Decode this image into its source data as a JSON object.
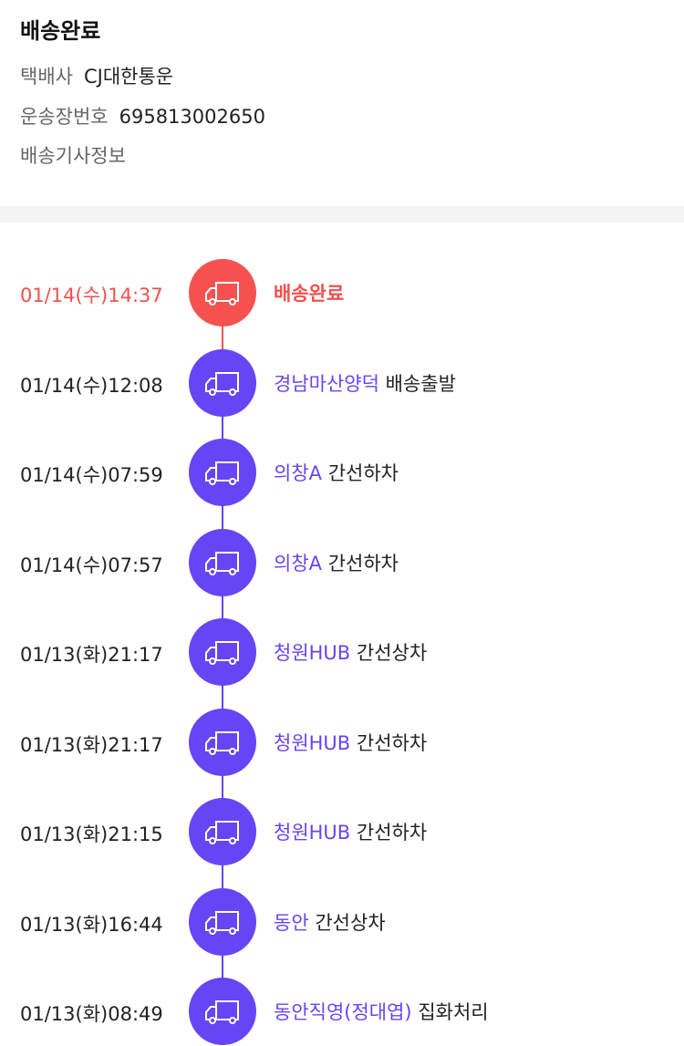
{
  "header": {
    "status": "배송완료",
    "courier_label": "택배사",
    "courier_value": "CJ대한통운",
    "tracking_label": "운송장번호",
    "tracking_value": "695813002650",
    "driver_info_label": "배송기사정보"
  },
  "colors": {
    "done": "#f5524f",
    "progress": "#6645f5"
  },
  "events": [
    {
      "time": "01/14(수)14:37",
      "location": "",
      "status": "배송완료",
      "icon": "truck-icon",
      "done": true
    },
    {
      "time": "01/14(수)12:08",
      "location": "경남마산양덕",
      "status": "배송출발",
      "icon": "truck-icon"
    },
    {
      "time": "01/14(수)07:59",
      "location": "의창A",
      "status": "간선하차",
      "icon": "truck-icon"
    },
    {
      "time": "01/14(수)07:57",
      "location": "의창A",
      "status": "간선하차",
      "icon": "truck-icon"
    },
    {
      "time": "01/13(화)21:17",
      "location": "청원HUB",
      "status": "간선상차",
      "icon": "truck-icon"
    },
    {
      "time": "01/13(화)21:17",
      "location": "청원HUB",
      "status": "간선하차",
      "icon": "truck-icon"
    },
    {
      "time": "01/13(화)21:15",
      "location": "청원HUB",
      "status": "간선하차",
      "icon": "truck-icon"
    },
    {
      "time": "01/13(화)16:44",
      "location": "동안",
      "status": "간선상차",
      "icon": "truck-icon"
    },
    {
      "time": "01/13(화)08:49",
      "location": "동안직영(정대엽)",
      "status": "집화처리",
      "icon": "truck-icon"
    }
  ]
}
